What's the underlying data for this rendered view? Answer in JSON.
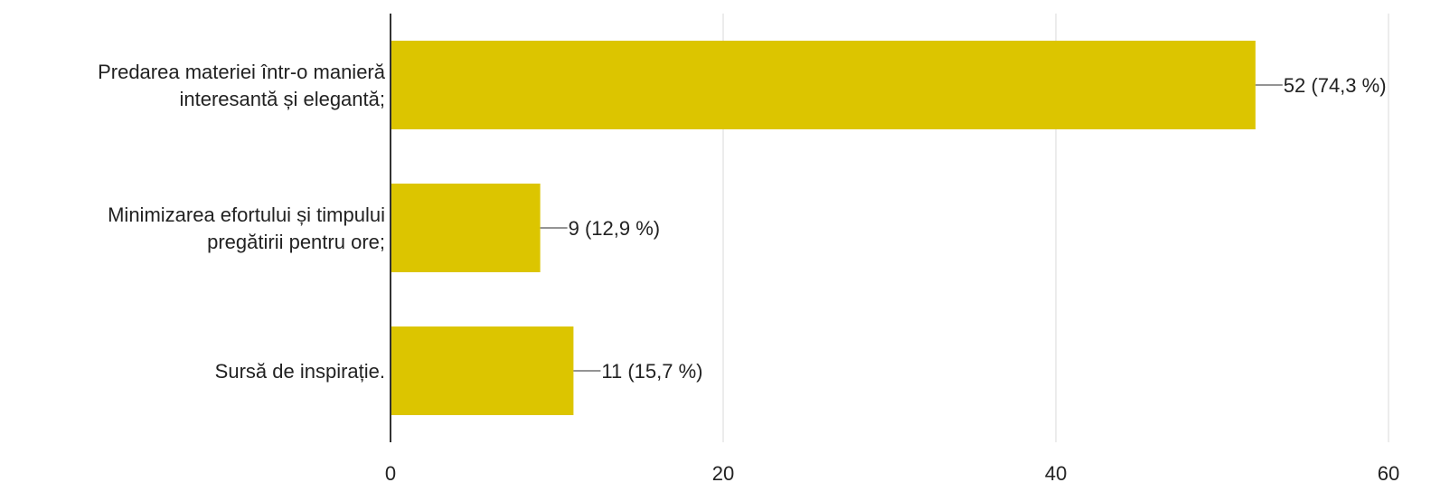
{
  "chart_data": {
    "type": "bar",
    "orientation": "horizontal",
    "categories": [
      [
        "Predarea materiei într-o manieră",
        "interesantă și elegantă;"
      ],
      [
        "Minimizarea efortului și timpului",
        "pregătirii pentru ore;"
      ],
      [
        "Sursă de inspirație."
      ]
    ],
    "values": [
      52,
      9,
      11
    ],
    "data_labels": [
      "52 (74,3 %)",
      "9 (12,9 %)",
      "11 (15,7 %)"
    ],
    "xlim": [
      0,
      60
    ],
    "x_ticks": [
      0,
      20,
      40,
      60
    ],
    "x_tick_labels": [
      "0",
      "20",
      "40",
      "60"
    ],
    "grid": true,
    "bar_color": "#dcc500",
    "gridline_color": "#e6e6e6",
    "axis_color": "#333333",
    "title": "",
    "xlabel": "",
    "ylabel": ""
  }
}
